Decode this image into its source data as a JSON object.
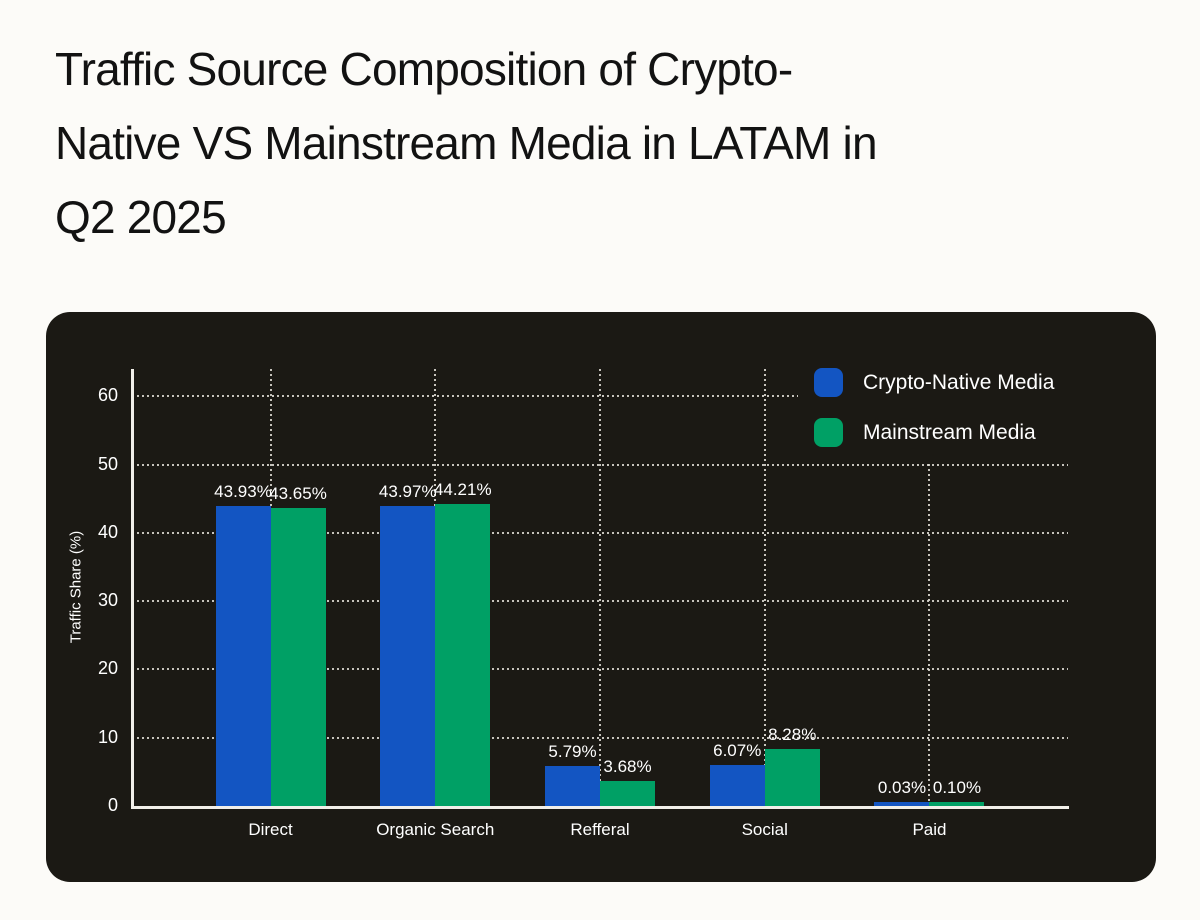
{
  "page": {
    "background": "#FCFBF8",
    "title_lines": [
      "Traffic Source Composition of Crypto-",
      "Native VS Mainstream Media in LATAM in",
      "Q2 2025"
    ]
  },
  "panel": {
    "background": "#1B1914",
    "text_color": "#FFFFFF"
  },
  "chart_data": {
    "type": "bar",
    "title": "Traffic Source Composition of Crypto-Native VS Mainstream Media in LATAM in Q2 2025",
    "categories": [
      "Direct",
      "Organic Search",
      "Refferal",
      "Social",
      "Paid"
    ],
    "series": [
      {
        "name": "Crypto-Native Media",
        "color": "#1355C2",
        "values": [
          43.93,
          43.97,
          5.79,
          6.07,
          0.03
        ],
        "data_labels": [
          "43.93%",
          "43.97%",
          "5.79%",
          "6.07%",
          "0.03%"
        ]
      },
      {
        "name": "Mainstream Media",
        "color": "#00A065",
        "values": [
          43.65,
          44.21,
          3.68,
          8.28,
          0.1
        ],
        "data_labels": [
          "43.65%",
          "44.21%",
          "3.68%",
          "8.28%",
          "0.10%"
        ]
      }
    ],
    "xlabel": "",
    "ylabel": "Traffic Share (%)",
    "yticks": [
      0,
      10,
      20,
      30,
      40,
      50,
      60
    ],
    "ylim": [
      0,
      64
    ],
    "grid": true,
    "grid_style": "dotted",
    "legend_position": "top-right",
    "bar_value_label_suffix": "%"
  }
}
